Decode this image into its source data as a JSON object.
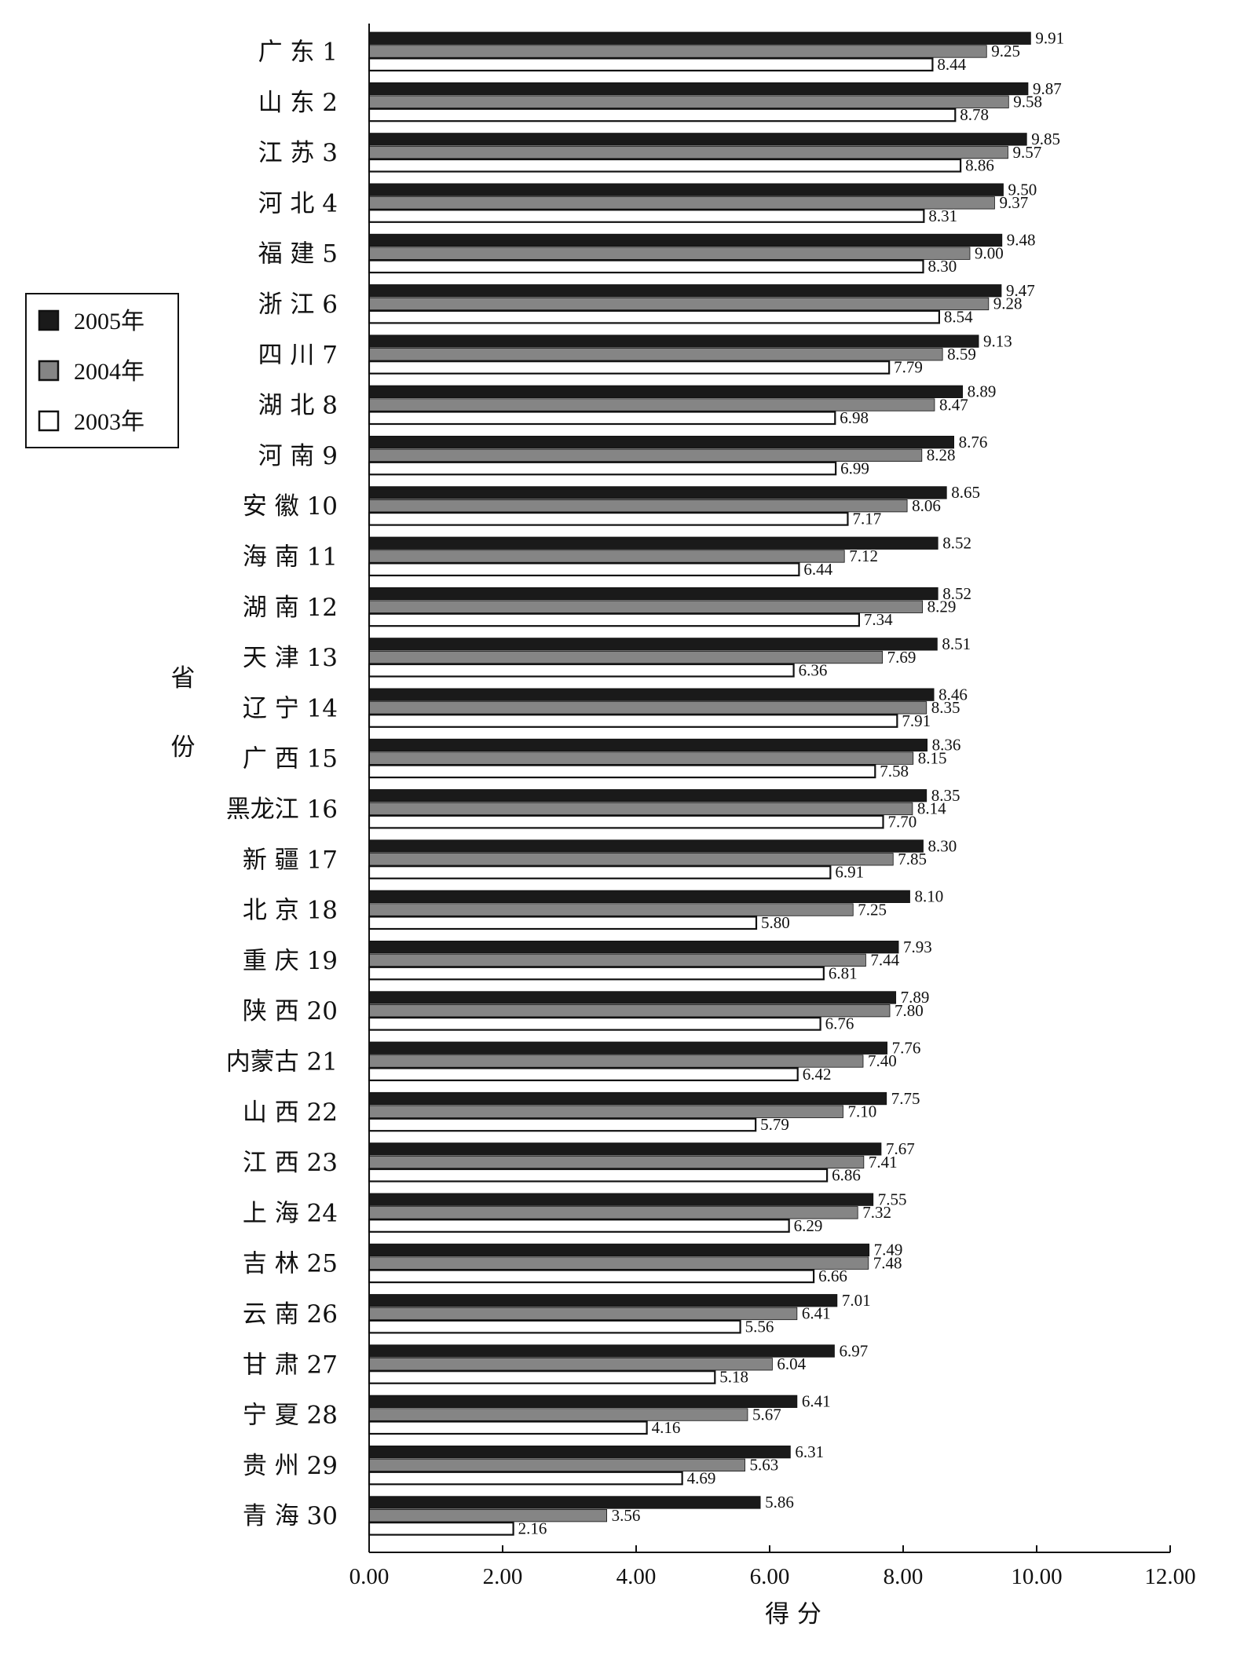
{
  "chart_data": {
    "type": "bar",
    "orientation": "horizontal",
    "categories": [
      "广 东 1",
      "山 东 2",
      "江 苏 3",
      "河 北 4",
      "福 建 5",
      "浙 江 6",
      "四 川 7",
      "湖 北 8",
      "河 南 9",
      "安 徽 10",
      "海 南 11",
      "湖 南 12",
      "天 津 13",
      "辽 宁 14",
      "广 西 15",
      "黑龙江 16",
      "新 疆 17",
      "北 京 18",
      "重 庆 19",
      "陕 西 20",
      "内蒙古 21",
      "山 西 22",
      "江 西 23",
      "上 海 24",
      "吉 林 25",
      "云 南 26",
      "甘 肃 27",
      "宁 夏 28",
      "贵 州 29",
      "青 海 30"
    ],
    "series": [
      {
        "name": "2005年",
        "color": "#1a1a1a",
        "values": [
          9.91,
          9.87,
          9.85,
          9.5,
          9.48,
          9.47,
          9.13,
          8.89,
          8.76,
          8.65,
          8.52,
          8.52,
          8.51,
          8.46,
          8.36,
          8.35,
          8.3,
          8.1,
          7.93,
          7.89,
          7.76,
          7.75,
          7.67,
          7.55,
          7.49,
          7.01,
          6.97,
          6.41,
          6.31,
          5.86
        ],
        "labels": [
          "9.91",
          "9.87",
          "9.85",
          "9.50",
          "9.48",
          "9.47",
          "9.13",
          "8.89",
          "8.76",
          "8.65",
          "8.52",
          "8.52",
          "8.51",
          "8.46",
          "8.36",
          "8.35",
          "8.30",
          "8.10",
          "7.93",
          "7.89",
          "7.76",
          "7.75",
          "7.67",
          "7.55",
          "7.49",
          "7.01",
          "6.97",
          "6.41",
          "6.31",
          "5.86"
        ]
      },
      {
        "name": "2004年",
        "color": "#858585",
        "values": [
          9.25,
          9.58,
          9.57,
          9.37,
          9.0,
          9.28,
          8.59,
          8.47,
          8.28,
          8.06,
          7.12,
          8.29,
          7.69,
          8.35,
          8.15,
          8.14,
          7.85,
          7.25,
          7.44,
          7.8,
          7.4,
          7.1,
          7.41,
          7.32,
          7.48,
          6.41,
          6.04,
          5.67,
          5.63,
          3.56
        ],
        "labels": [
          "9.25",
          "9.58",
          "9.57",
          "9.37",
          "9.00",
          "9.28",
          "8.59",
          "8.47",
          "8.28",
          "8.06",
          "7.12",
          "8.29",
          "7.69",
          "8.35",
          "8.15",
          "8.14",
          "7.85",
          "7.25",
          "7.44",
          "7.80",
          "7.40",
          "7.10",
          "7.41",
          "7.32",
          "7.48",
          "6.41",
          "6.04",
          "5.67",
          "5.63",
          "3.56"
        ]
      },
      {
        "name": "2003年",
        "color": "#ffffff",
        "values": [
          8.44,
          8.78,
          8.86,
          8.31,
          8.3,
          8.54,
          7.79,
          6.98,
          6.99,
          7.17,
          6.44,
          7.34,
          6.36,
          7.91,
          7.58,
          7.7,
          6.91,
          5.8,
          6.81,
          6.76,
          6.42,
          5.79,
          6.86,
          6.29,
          6.66,
          5.56,
          5.18,
          4.16,
          4.69,
          2.16
        ],
        "labels": [
          "8.44",
          "8.78",
          "8.86",
          "8.31",
          "8.30",
          "8.54",
          "7.79",
          "6.98",
          "6.99",
          "7.17",
          "6.44",
          "7.34",
          "6.36",
          "7.91",
          "7.58",
          "7.70",
          "6.91",
          "5.80",
          "6.81",
          "6.76",
          "6.42",
          "5.79",
          "6.86",
          "6.29",
          "6.66",
          "5.56",
          "5.18",
          "4.16",
          "4.69",
          "2.16"
        ]
      }
    ],
    "xlim": [
      0,
      12
    ],
    "xticks": [
      "0.00",
      "2.00",
      "4.00",
      "6.00",
      "8.00",
      "10.00",
      "12.00"
    ],
    "xlabel": "得 分",
    "ylabel": "省 份",
    "legend_position": "left",
    "grid": false
  }
}
